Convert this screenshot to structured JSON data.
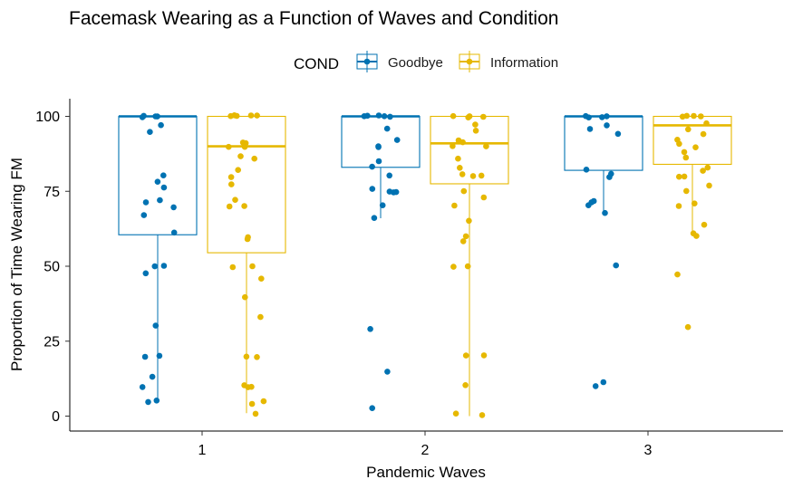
{
  "chart_data": {
    "type": "box",
    "title": "Facemask Wearing as a Function of Waves and Condition",
    "xlabel": "Pandemic Waves",
    "ylabel": "Proportion of Time Wearing FM",
    "categories": [
      "1",
      "2",
      "3"
    ],
    "ylim": [
      -4,
      105
    ],
    "yticks": [
      0,
      25,
      50,
      75,
      100
    ],
    "grid": false,
    "legend": {
      "title": "COND",
      "position": "top",
      "entries": [
        "Goodbye",
        "Information"
      ]
    },
    "colors": {
      "Goodbye": "#0072B2",
      "Information": "#E6B800"
    },
    "series": [
      {
        "name": "Goodbye",
        "boxes": [
          {
            "wave": "1",
            "min": 5,
            "q1": 60.5,
            "median": 100,
            "q3": 100,
            "max": 100,
            "points": [
              100,
              100,
              100,
              100,
              97,
              95,
              80,
              78,
              76,
              72,
              71,
              70,
              67,
              61,
              50,
              50,
              48,
              30,
              20,
              20,
              13,
              10,
              5,
              5
            ]
          },
          {
            "wave": "2",
            "min": 66,
            "q1": 83,
            "median": 100,
            "q3": 100,
            "max": 100,
            "points": [
              100,
              100,
              100,
              100,
              100,
              96,
              92,
              90,
              90,
              85,
              83,
              80,
              76,
              75,
              75,
              75,
              70,
              66,
              29,
              15,
              3
            ]
          },
          {
            "wave": "3",
            "min": 67,
            "q1": 82,
            "median": 100,
            "q3": 100,
            "max": 100,
            "points": [
              100,
              100,
              100,
              100,
              97,
              96,
              94,
              82,
              81,
              80,
              72,
              71,
              70,
              68,
              50,
              11,
              10
            ]
          }
        ]
      },
      {
        "name": "Information",
        "boxes": [
          {
            "wave": "1",
            "min": 1,
            "q1": 54.5,
            "median": 90,
            "q3": 100,
            "max": 100,
            "points": [
              100,
              100,
              100,
              100,
              100,
              91,
              91,
              90,
              90,
              87,
              86,
              82,
              80,
              77,
              72,
              70,
              70,
              60,
              59,
              50,
              50,
              46,
              40,
              33,
              20,
              20,
              10,
              10,
              10,
              5,
              4,
              1
            ]
          },
          {
            "wave": "2",
            "min": 0,
            "q1": 77.5,
            "median": 91,
            "q3": 100,
            "max": 100,
            "points": [
              100,
              100,
              100,
              100,
              97,
              95,
              92,
              91,
              90,
              90,
              86,
              83,
              81,
              80,
              80,
              75,
              73,
              70,
              65,
              60,
              58,
              50,
              50,
              20,
              20,
              10,
              1,
              0
            ]
          },
          {
            "wave": "3",
            "min": 60,
            "q1": 84,
            "median": 97,
            "q3": 100,
            "max": 100,
            "points": [
              100,
              100,
              100,
              100,
              98,
              96,
              94,
              92,
              91,
              90,
              88,
              86,
              83,
              82,
              80,
              80,
              77,
              75,
              71,
              70,
              64,
              61,
              60,
              47,
              30
            ]
          }
        ]
      }
    ]
  }
}
